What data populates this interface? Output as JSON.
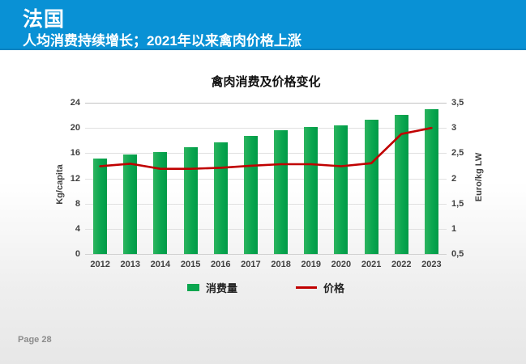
{
  "header": {
    "title": "法国",
    "subtitle": "人均消费持续增长；2021年以来禽肉价格上涨",
    "bg_color": "#0991d5"
  },
  "footer": {
    "page_label": "Page 28"
  },
  "legend": {
    "consumption_label": "消费量",
    "price_label": "价格"
  },
  "colors": {
    "bar_green": "#0aa64f",
    "line_red": "#c00000",
    "header_blue": "#0991d5"
  },
  "chart_data": {
    "type": "bar",
    "title": "禽肉消费及价格变化",
    "categories": [
      "2012",
      "2013",
      "2014",
      "2015",
      "2016",
      "2017",
      "2018",
      "2019",
      "2020",
      "2021",
      "2022",
      "2023"
    ],
    "series": [
      {
        "name": "消费量",
        "type": "bar",
        "axis": "left",
        "color": "#0aa64f",
        "values": [
          15.2,
          15.8,
          16.2,
          17.0,
          17.7,
          18.7,
          19.6,
          20.2,
          20.4,
          21.3,
          22.1,
          23.0
        ]
      },
      {
        "name": "价格",
        "type": "line",
        "axis": "right",
        "color": "#c00000",
        "values": [
          2.24,
          2.29,
          2.19,
          2.19,
          2.21,
          2.25,
          2.28,
          2.28,
          2.24,
          2.3,
          2.88,
          3.0
        ]
      }
    ],
    "left_axis": {
      "label": "Kg/capita",
      "min": 0,
      "max": 24,
      "step": 4,
      "tick_labels": [
        "0",
        "4",
        "8",
        "12",
        "16",
        "20",
        "24"
      ]
    },
    "right_axis": {
      "label": "Euro/kg LW",
      "min": 0.5,
      "max": 3.5,
      "step": 0.5,
      "tick_labels": [
        "0,5",
        "1",
        "1,5",
        "2",
        "2,5",
        "3",
        "3,5"
      ]
    },
    "grid": true,
    "legend_position": "bottom"
  }
}
